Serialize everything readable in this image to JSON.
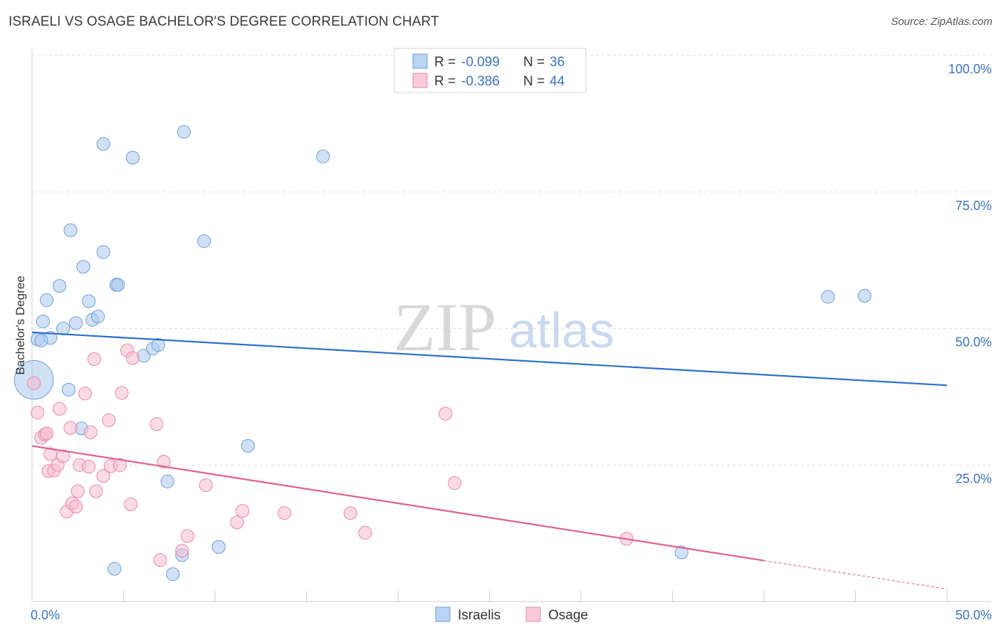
{
  "title": "ISRAELI VS OSAGE BACHELOR'S DEGREE CORRELATION CHART",
  "source": "Source: ZipAtlas.com",
  "watermark": {
    "zip": "ZIP",
    "atlas": "atlas"
  },
  "legend": {
    "rows": [
      {
        "r_label": "R = ",
        "r_value": "-0.099",
        "n_label": "N = ",
        "n_value": "36"
      },
      {
        "r_label": "R = ",
        "r_value": "-0.386",
        "n_label": "N = ",
        "n_value": "44"
      }
    ]
  },
  "bottom_legend": [
    "Israelis",
    "Osage"
  ],
  "chart_data": {
    "type": "scatter",
    "ylabel": "Bachelor's Degree",
    "xlim": [
      0,
      50
    ],
    "ylim": [
      0,
      100
    ],
    "y_ticks": [
      {
        "value": 100,
        "label": "100.0%"
      },
      {
        "value": 75,
        "label": "75.0%"
      },
      {
        "value": 50,
        "label": "50.0%"
      },
      {
        "value": 25,
        "label": "25.0%"
      }
    ],
    "x_tick_labels": [
      {
        "value": 0,
        "label": "0.0%"
      },
      {
        "value": 50,
        "label": "50.0%"
      }
    ],
    "x_minor_ticks": [
      5,
      10,
      15,
      20,
      25,
      30,
      35,
      40,
      45
    ],
    "grid": true,
    "series": [
      {
        "name": "Israelis",
        "color": "#a9c8ee",
        "stroke": "#6f9fd8",
        "trend_color": "#2d6fc9",
        "trend": {
          "x0": 0,
          "y0": 49.3,
          "x1": 50,
          "y1": 39.6
        },
        "points": [
          [
            0.1,
            40.6,
            30
          ],
          [
            0.3,
            48,
            10
          ],
          [
            0.6,
            51.3,
            10
          ],
          [
            0.8,
            55.2,
            10
          ],
          [
            1.0,
            48.3,
            10
          ],
          [
            1.5,
            57.8,
            10
          ],
          [
            1.7,
            50.0,
            10
          ],
          [
            2.0,
            38.8,
            10
          ],
          [
            2.1,
            68.0,
            10
          ],
          [
            2.4,
            51.0,
            10
          ],
          [
            2.7,
            31.7,
            10
          ],
          [
            2.8,
            61.3,
            10
          ],
          [
            3.1,
            55.0,
            10
          ],
          [
            3.3,
            51.6,
            10
          ],
          [
            3.6,
            52.2,
            10
          ],
          [
            3.9,
            83.8,
            10
          ],
          [
            3.9,
            64.0,
            10
          ],
          [
            4.5,
            6.0,
            10
          ],
          [
            4.6,
            58.0,
            10
          ],
          [
            4.7,
            58.0,
            10
          ],
          [
            5.5,
            81.3,
            10
          ],
          [
            6.1,
            45.0,
            10
          ],
          [
            6.6,
            46.3,
            10
          ],
          [
            6.9,
            47.0,
            10
          ],
          [
            7.4,
            22.0,
            10
          ],
          [
            7.7,
            5.0,
            10
          ],
          [
            8.2,
            8.5,
            10
          ],
          [
            8.3,
            86.0,
            10
          ],
          [
            9.4,
            66.0,
            10
          ],
          [
            10.2,
            10.0,
            10
          ],
          [
            11.8,
            28.5,
            10
          ],
          [
            15.9,
            81.5,
            10
          ],
          [
            35.5,
            9.0,
            10
          ],
          [
            43.5,
            55.8,
            10
          ],
          [
            45.5,
            56.0,
            10
          ],
          [
            0.5,
            47.8,
            10
          ]
        ]
      },
      {
        "name": "Osage",
        "color": "#f6bccd",
        "stroke": "#e88aa8",
        "trend_color": "#e0608c",
        "trend": {
          "x0": 0,
          "y0": 28.5,
          "x1": 40,
          "y1": 7.5
        },
        "trend_dash": {
          "x0": 40,
          "y0": 7.5,
          "x1": 50,
          "y1": 2.3
        },
        "points": [
          [
            0.1,
            40.0,
            10
          ],
          [
            0.3,
            34.6,
            10
          ],
          [
            0.5,
            30.0,
            10
          ],
          [
            0.7,
            30.6,
            10
          ],
          [
            0.8,
            30.8,
            10
          ],
          [
            0.9,
            23.9,
            10
          ],
          [
            1.0,
            27.0,
            10
          ],
          [
            1.2,
            24.0,
            10
          ],
          [
            1.4,
            25.0,
            10
          ],
          [
            1.5,
            35.3,
            10
          ],
          [
            1.7,
            26.6,
            10
          ],
          [
            1.9,
            16.5,
            10
          ],
          [
            2.1,
            31.8,
            10
          ],
          [
            2.2,
            18.0,
            10
          ],
          [
            2.4,
            17.4,
            10
          ],
          [
            2.5,
            20.2,
            10
          ],
          [
            2.6,
            25.0,
            10
          ],
          [
            2.9,
            38.1,
            10
          ],
          [
            3.1,
            24.7,
            10
          ],
          [
            3.2,
            31.0,
            10
          ],
          [
            3.4,
            44.4,
            10
          ],
          [
            3.5,
            20.2,
            10
          ],
          [
            3.9,
            23.0,
            10
          ],
          [
            4.2,
            33.2,
            10
          ],
          [
            4.3,
            24.8,
            10
          ],
          [
            4.8,
            25.0,
            10
          ],
          [
            4.9,
            38.2,
            10
          ],
          [
            5.2,
            46.0,
            10
          ],
          [
            5.4,
            17.8,
            10
          ],
          [
            5.5,
            44.6,
            10
          ],
          [
            6.8,
            32.5,
            10
          ],
          [
            7.0,
            7.6,
            10
          ],
          [
            7.2,
            25.6,
            10
          ],
          [
            8.2,
            9.3,
            10
          ],
          [
            8.5,
            12.0,
            10
          ],
          [
            9.5,
            21.3,
            10
          ],
          [
            11.2,
            14.5,
            10
          ],
          [
            11.5,
            16.6,
            10
          ],
          [
            13.8,
            16.2,
            10
          ],
          [
            17.4,
            16.2,
            10
          ],
          [
            18.2,
            12.6,
            10
          ],
          [
            22.6,
            34.4,
            10
          ],
          [
            23.1,
            21.7,
            10
          ],
          [
            32.5,
            11.5,
            10
          ]
        ]
      }
    ]
  }
}
